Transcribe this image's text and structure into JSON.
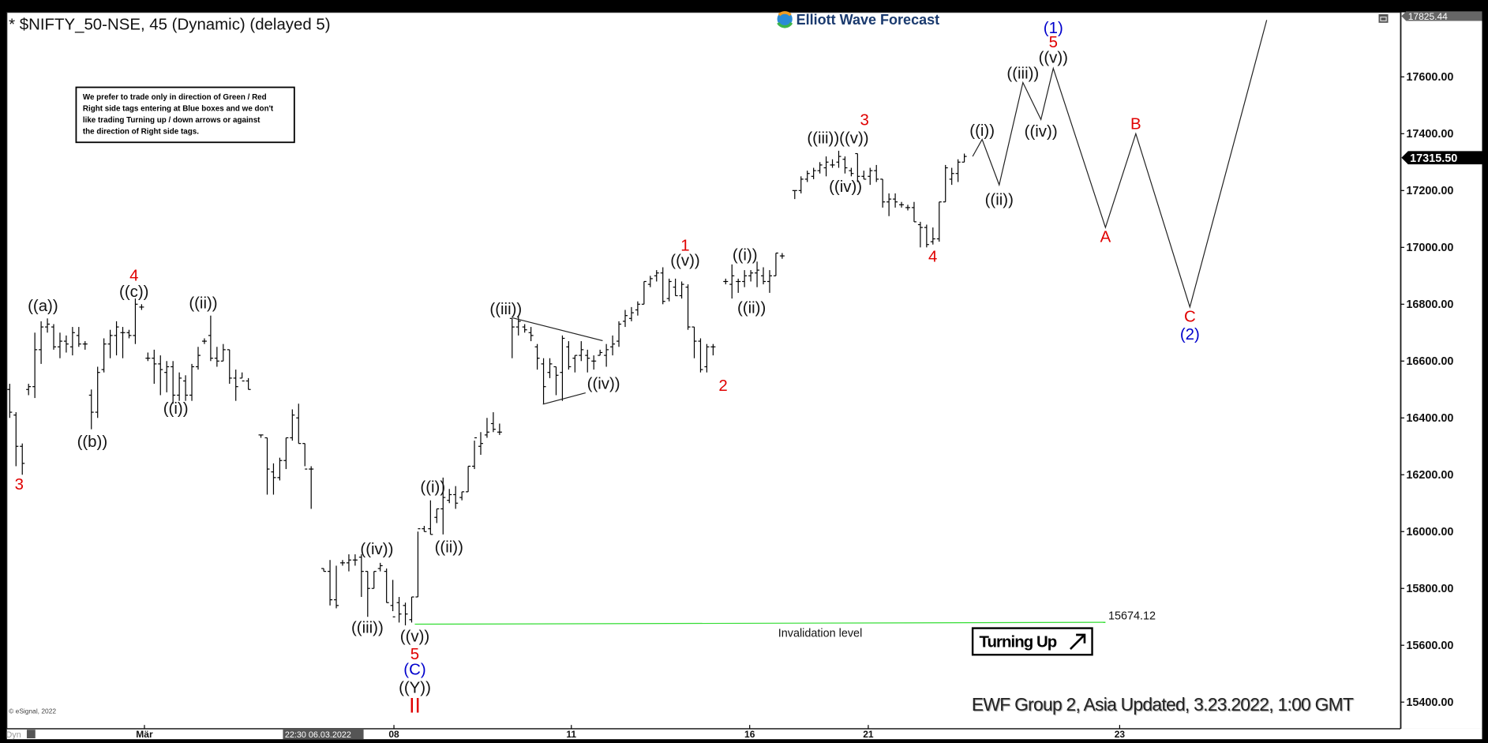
{
  "header": {
    "title": "* $NIFTY_50-NSE, 45 (Dynamic) (delayed 5)"
  },
  "logo": {
    "text": "Elliott Wave Forecast"
  },
  "disclaimer": [
    "We prefer to trade only in direction of Green / Red",
    "Right side tags entering at Blue boxes and we don't",
    "like trading Turning up / down arrows or against",
    "the direction of Right side tags."
  ],
  "footer": {
    "update": "EWF Group 2, Asia Updated, 3.23.2022, 1:00 GMT",
    "copyright": "© eSignal, 2022",
    "dyn": "Dyn",
    "cursor_time": "22:30 06.03.2022"
  },
  "invalidation": {
    "label": "Invalidation level",
    "value": "15674.12",
    "price": 15674.12,
    "color": "#33dd33"
  },
  "turning": {
    "label": "Turning Up"
  },
  "colors": {
    "red": "#e00000",
    "blue": "#0000cc",
    "black": "#111111"
  },
  "chart_data": {
    "type": "ohlc",
    "ylim": [
      15350,
      17850
    ],
    "yticks": [
      "17600.00",
      "17400.00",
      "17200.00",
      "17000.00",
      "16800.00",
      "16600.00",
      "16400.00",
      "16200.00",
      "16000.00",
      "15800.00",
      "15600.00",
      "15400.00"
    ],
    "ytick_values": [
      17600,
      17400,
      17200,
      17000,
      16800,
      16600,
      16400,
      16200,
      16000,
      15800,
      15600,
      15400
    ],
    "xticks": [
      "Mär",
      "08",
      "11",
      "16",
      "21",
      "23"
    ],
    "top_price": "17825.44",
    "last_price": "17315.50",
    "bars": [
      [
        16500,
        16520,
        16400,
        16420
      ],
      [
        16410,
        16420,
        16230,
        16300
      ],
      [
        16300,
        16310,
        16200,
        16240
      ],
      [
        16500,
        16520,
        16480,
        16510
      ],
      [
        16510,
        16700,
        16470,
        16640
      ],
      [
        16640,
        16740,
        16590,
        16720
      ],
      [
        16720,
        16750,
        16700,
        16730
      ],
      [
        16720,
        16730,
        16640,
        16650
      ],
      [
        16650,
        16700,
        16610,
        16670
      ],
      [
        16670,
        16690,
        16630,
        16660
      ],
      [
        16650,
        16720,
        16620,
        16700
      ],
      [
        16690,
        16720,
        16650,
        16660
      ],
      [
        16660,
        16670,
        16640,
        16660
      ],
      [
        16480,
        16500,
        16360,
        16420
      ],
      [
        16420,
        16580,
        16400,
        16560
      ],
      [
        16570,
        16680,
        16560,
        16660
      ],
      [
        16660,
        16710,
        16610,
        16690
      ],
      [
        16690,
        16740,
        16620,
        16720
      ],
      [
        16700,
        16720,
        16610,
        16700
      ],
      [
        16700,
        16710,
        16680,
        16690
      ],
      [
        16690,
        16820,
        16660,
        16800
      ],
      [
        16790,
        16800,
        16780,
        16790
      ],
      [
        16610,
        16630,
        16600,
        16610
      ],
      [
        16610,
        16640,
        16520,
        16590
      ],
      [
        16590,
        16620,
        16480,
        16570
      ],
      [
        16560,
        16600,
        16490,
        16580
      ],
      [
        16580,
        16600,
        16450,
        16480
      ],
      [
        16480,
        16560,
        16460,
        16540
      ],
      [
        16530,
        16550,
        16460,
        16480
      ],
      [
        16480,
        16590,
        16460,
        16580
      ],
      [
        16580,
        16650,
        16570,
        16620
      ],
      [
        16670,
        16680,
        16660,
        16670
      ],
      [
        16690,
        16760,
        16600,
        16610
      ],
      [
        16610,
        16650,
        16580,
        16600
      ],
      [
        16600,
        16660,
        16600,
        16640
      ],
      [
        16640,
        16640,
        16520,
        16540
      ],
      [
        16540,
        16570,
        16460,
        16510
      ],
      [
        16540,
        16560,
        16540,
        16530
      ],
      [
        16530,
        16540,
        16500,
        16500
      ],
      null,
      [
        16340,
        16340,
        16330,
        16340
      ],
      [
        16330,
        16330,
        16130,
        16220
      ],
      [
        16210,
        16240,
        16130,
        16190
      ],
      [
        16190,
        16260,
        16180,
        16250
      ],
      [
        16250,
        16330,
        16220,
        16330
      ],
      [
        16330,
        16430,
        16320,
        16410
      ],
      [
        16400,
        16450,
        16310,
        16310
      ],
      [
        16310,
        16310,
        16230,
        16220
      ],
      [
        16220,
        16230,
        16080,
        16220
      ],
      null,
      [
        15870,
        15870,
        15860,
        15860
      ],
      [
        15860,
        15900,
        15740,
        15760
      ],
      [
        15760,
        15880,
        15730,
        15740
      ],
      [
        15890,
        15900,
        15880,
        15890
      ],
      [
        15890,
        15920,
        15860,
        15900
      ],
      [
        15900,
        15920,
        15880,
        15900
      ],
      [
        15910,
        15920,
        15770,
        15860
      ],
      [
        15860,
        15860,
        15700,
        15800
      ],
      [
        15800,
        15860,
        15800,
        15860
      ],
      [
        15870,
        15890,
        15860,
        15880
      ],
      [
        15860,
        15870,
        15750,
        15750
      ],
      [
        15740,
        15830,
        15720,
        15700
      ],
      [
        15750,
        15770,
        15680,
        15710
      ],
      [
        15740,
        15750,
        15670,
        15710
      ],
      [
        15690,
        15770,
        15680,
        15770
      ],
      [
        15770,
        16000,
        15770,
        16010
      ],
      [
        16010,
        16020,
        16000,
        16000
      ],
      [
        16010,
        16110,
        15990,
        15990
      ],
      [
        16050,
        16080,
        16030,
        16080
      ],
      [
        16080,
        16190,
        15990,
        16120
      ],
      [
        16110,
        16150,
        16100,
        16130
      ],
      [
        16130,
        16160,
        16080,
        16100
      ],
      [
        16120,
        16140,
        16110,
        16140
      ],
      [
        16140,
        16230,
        16140,
        16230
      ],
      [
        16230,
        16320,
        16220,
        16330
      ],
      [
        16300,
        16350,
        16270,
        16310
      ],
      [
        16340,
        16400,
        16330,
        16350
      ],
      [
        16380,
        16420,
        16350,
        16360
      ],
      [
        16350,
        16380,
        16340,
        16350
      ],
      null,
      [
        16750,
        16750,
        16610,
        16720
      ],
      [
        16720,
        16760,
        16690,
        16740
      ],
      [
        16720,
        16730,
        16700,
        16710
      ],
      [
        16700,
        16720,
        16670,
        16690
      ],
      [
        16650,
        16660,
        16570,
        16610
      ],
      [
        16590,
        16610,
        16450,
        16510
      ],
      [
        16560,
        16610,
        16540,
        16590
      ],
      [
        16580,
        16580,
        16480,
        16550
      ],
      [
        16560,
        16690,
        16460,
        16680
      ],
      [
        16650,
        16670,
        16570,
        16580
      ],
      [
        16610,
        16620,
        16560,
        16620
      ],
      [
        16620,
        16670,
        16600,
        16640
      ],
      [
        16620,
        16640,
        16560,
        16610
      ],
      [
        16600,
        16620,
        16570,
        16600
      ],
      [
        16620,
        16640,
        16620,
        16630
      ],
      [
        16620,
        16660,
        16580,
        16640
      ],
      [
        16650,
        16690,
        16620,
        16660
      ],
      [
        16670,
        16740,
        16650,
        16730
      ],
      [
        16740,
        16780,
        16720,
        16760
      ],
      [
        16750,
        16790,
        16740,
        16770
      ],
      [
        16780,
        16810,
        16760,
        16800
      ],
      [
        16800,
        16880,
        16800,
        16880
      ],
      [
        16870,
        16900,
        16860,
        16890
      ],
      [
        16900,
        16920,
        16880,
        16910
      ],
      [
        16910,
        16930,
        16800,
        16810
      ],
      [
        16820,
        16890,
        16810,
        16880
      ],
      [
        16860,
        16890,
        16830,
        16830
      ],
      [
        16830,
        16880,
        16820,
        16870
      ],
      [
        16860,
        16870,
        16710,
        16720
      ],
      [
        16720,
        16720,
        16610,
        16670
      ],
      [
        16670,
        16680,
        16560,
        16570
      ],
      [
        16580,
        16660,
        16560,
        16650
      ],
      [
        16650,
        16660,
        16620,
        16650
      ],
      null,
      [
        16880,
        16890,
        16870,
        16880
      ],
      [
        16870,
        16940,
        16820,
        16900
      ],
      [
        16880,
        16890,
        16840,
        16880
      ],
      [
        16880,
        16920,
        16860,
        16900
      ],
      [
        16900,
        16920,
        16880,
        16910
      ],
      [
        16910,
        16950,
        16860,
        16920
      ],
      [
        16900,
        16930,
        16870,
        16880
      ],
      [
        16880,
        16920,
        16840,
        16900
      ],
      [
        16900,
        16980,
        16900,
        16980
      ],
      [
        16970,
        16980,
        16960,
        16970
      ],
      null,
      [
        17200,
        17200,
        17170,
        17200
      ],
      [
        17200,
        17250,
        17190,
        17240
      ],
      [
        17240,
        17270,
        17230,
        17260
      ],
      [
        17250,
        17280,
        17240,
        17270
      ],
      [
        17270,
        17300,
        17260,
        17290
      ],
      [
        17280,
        17320,
        17250,
        17300
      ],
      [
        17290,
        17310,
        17280,
        17290
      ],
      [
        17300,
        17340,
        17280,
        17320
      ],
      [
        17310,
        17320,
        17260,
        17280
      ],
      [
        17270,
        17280,
        17250,
        17260
      ],
      [
        17330,
        17330,
        17230,
        17250
      ],
      [
        17250,
        17270,
        17240,
        17240
      ],
      [
        17250,
        17280,
        17220,
        17270
      ],
      [
        17270,
        17290,
        17230,
        17240
      ],
      [
        17240,
        17240,
        17140,
        17160
      ],
      [
        17160,
        17190,
        17110,
        17170
      ],
      [
        17170,
        17190,
        17140,
        17160
      ],
      [
        17150,
        17160,
        17140,
        17150
      ],
      [
        17140,
        17150,
        17130,
        17140
      ],
      [
        17140,
        17160,
        17090,
        17090
      ],
      [
        17080,
        17090,
        17000,
        17070
      ],
      [
        17070,
        17080,
        17000,
        17010
      ],
      [
        17020,
        17070,
        17010,
        17030
      ],
      [
        17030,
        17160,
        17020,
        17160
      ],
      [
        17160,
        17290,
        17160,
        17280
      ],
      [
        17240,
        17280,
        17220,
        17260
      ],
      [
        17260,
        17310,
        17230,
        17300
      ],
      [
        17300,
        17330,
        17300,
        17320
      ]
    ],
    "projection_prices": [
      17320,
      17380,
      17220,
      17580,
      17450,
      17630,
      17070,
      17400,
      16790,
      17800
    ],
    "wave_labels": [
      {
        "text": "3",
        "color": "red"
      },
      {
        "text": "((a))",
        "color": "black"
      },
      {
        "text": "((b))",
        "color": "black"
      },
      {
        "text": "4",
        "color": "red"
      },
      {
        "text": "((c))",
        "color": "black"
      },
      {
        "text": "((ii))",
        "color": "black"
      },
      {
        "text": "((i))",
        "color": "black"
      },
      {
        "text": "((iv))",
        "color": "black"
      },
      {
        "text": "((iii))",
        "color": "black"
      },
      {
        "text": "((v))",
        "color": "black"
      },
      {
        "text": "5",
        "color": "red"
      },
      {
        "text": "(C)",
        "color": "blue"
      },
      {
        "text": "((Y))",
        "color": "black"
      },
      {
        "text": "II",
        "color": "red"
      },
      {
        "text": "((i))",
        "color": "black"
      },
      {
        "text": "((ii))",
        "color": "black"
      },
      {
        "text": "((iii))",
        "color": "black"
      },
      {
        "text": "((iv))",
        "color": "black"
      },
      {
        "text": "1",
        "color": "red"
      },
      {
        "text": "((v))",
        "color": "black"
      },
      {
        "text": "2",
        "color": "red"
      },
      {
        "text": "((i))",
        "color": "black"
      },
      {
        "text": "((ii))",
        "color": "black"
      },
      {
        "text": "((iii))((v))",
        "color": "black"
      },
      {
        "text": "3",
        "color": "red"
      },
      {
        "text": "((iv))",
        "color": "black"
      },
      {
        "text": "4",
        "color": "red"
      },
      {
        "text": "((i))",
        "color": "black"
      },
      {
        "text": "((ii))",
        "color": "black"
      },
      {
        "text": "((iii))",
        "color": "black"
      },
      {
        "text": "((iv))",
        "color": "black"
      },
      {
        "text": "((v))",
        "color": "black"
      },
      {
        "text": "5",
        "color": "red"
      },
      {
        "text": "(1)",
        "color": "blue"
      },
      {
        "text": "A",
        "color": "red"
      },
      {
        "text": "B",
        "color": "red"
      },
      {
        "text": "C",
        "color": "red"
      },
      {
        "text": "(2)",
        "color": "blue"
      }
    ]
  }
}
